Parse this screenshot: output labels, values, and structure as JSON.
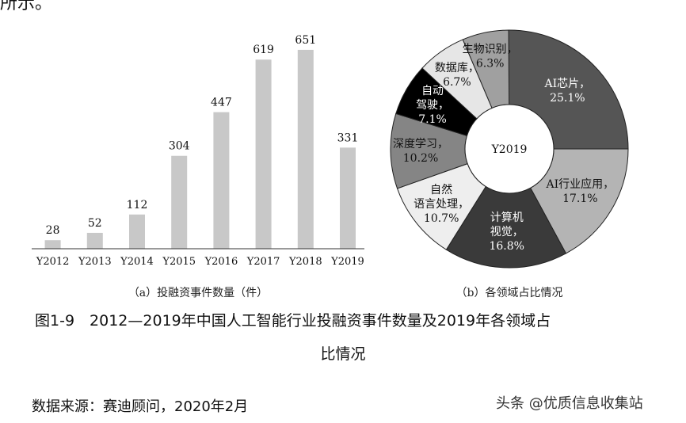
{
  "top_fragment": "所示。",
  "chart_data": [
    {
      "type": "bar",
      "title": "（a）投融资事件数量（件）",
      "categories": [
        "Y2012",
        "Y2013",
        "Y2014",
        "Y2015",
        "Y2016",
        "Y2017",
        "Y2018",
        "Y2019"
      ],
      "values": [
        28,
        52,
        112,
        304,
        447,
        619,
        651,
        331
      ],
      "value_labels": [
        "28",
        "52",
        "112",
        "304",
        "447",
        "619",
        "651",
        "331"
      ],
      "bar_color": "#c8c8c8",
      "ylim": [
        0,
        700
      ],
      "grid": false,
      "legend": "none"
    },
    {
      "type": "pie",
      "title": "（b）各领域占比情况",
      "center_label": "Y2019",
      "slices": [
        {
          "label": "AI芯片，",
          "pct_label": "25.1%",
          "value": 25.1,
          "color": "#555555",
          "text_color": "#ffffff"
        },
        {
          "label": "AI行业应用，",
          "pct_label": "17.1%",
          "value": 17.1,
          "color": "#b4b4b4",
          "text_color": "#111111"
        },
        {
          "label": "计算机视觉，",
          "pct_label": "16.8%",
          "value": 16.8,
          "color": "#3a3a3a",
          "text_color": "#ffffff"
        },
        {
          "label": "自然语言处理，",
          "pct_label": "10.7%",
          "value": 10.7,
          "color": "#eeeeee",
          "text_color": "#111111"
        },
        {
          "label": "深度学习，",
          "pct_label": "10.2%",
          "value": 10.2,
          "color": "#858585",
          "text_color": "#111111"
        },
        {
          "label": "自动驾驶，",
          "pct_label": "7.1%",
          "value": 7.1,
          "color": "#000000",
          "text_color": "#ffffff"
        },
        {
          "label": "数据库，",
          "pct_label": "6.7%",
          "value": 6.7,
          "color": "#e6e6e6",
          "text_color": "#111111"
        },
        {
          "label": "生物识别，",
          "pct_label": "6.3%",
          "value": 6.3,
          "color": "#a0a0a0",
          "text_color": "#111111"
        }
      ],
      "legend": "none"
    }
  ],
  "caption": {
    "line1": "图1-9　2012—2019年中国人工智能行业投融资事件数量及2019年各领域占",
    "line2": "比情况"
  },
  "source": "数据来源：赛迪顾问，2020年2月",
  "watermark": "头条 @优质信息收集站"
}
